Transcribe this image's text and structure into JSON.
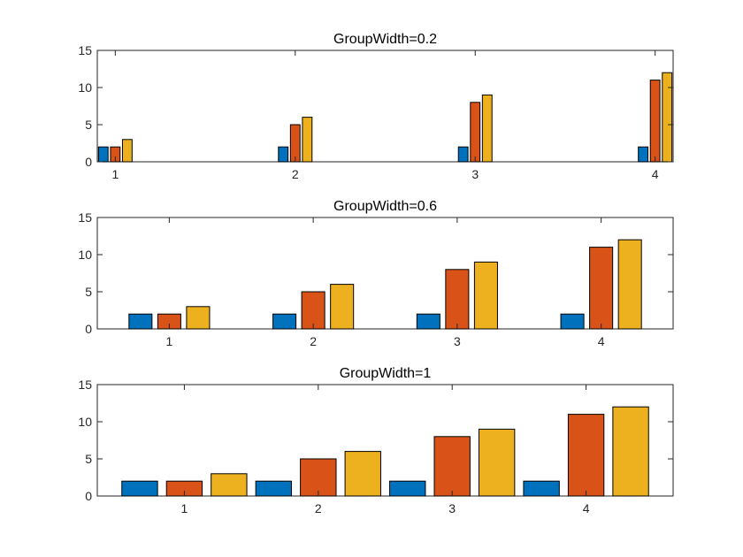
{
  "figure": {
    "background": "#ffffff"
  },
  "chart_data": [
    {
      "type": "bar",
      "title": "GroupWidth=0.2",
      "group_width": 0.2,
      "categories": [
        "1",
        "2",
        "3",
        "4"
      ],
      "series": [
        {
          "name": "Series 1",
          "color": "#0072BD",
          "values": [
            2,
            2,
            2,
            2
          ]
        },
        {
          "name": "Series 2",
          "color": "#D95319",
          "values": [
            2,
            5,
            8,
            11
          ]
        },
        {
          "name": "Series 3",
          "color": "#EDB120",
          "values": [
            3,
            6,
            9,
            12
          ]
        }
      ],
      "xlim": [
        0.9,
        4.1
      ],
      "ylim": [
        0,
        15
      ],
      "yticks": [
        0,
        5,
        10,
        15
      ],
      "xlabel": "",
      "ylabel": "",
      "grid": false,
      "legend": null
    },
    {
      "type": "bar",
      "title": "GroupWidth=0.6",
      "group_width": 0.6,
      "categories": [
        "1",
        "2",
        "3",
        "4"
      ],
      "series": [
        {
          "name": "Series 1",
          "color": "#0072BD",
          "values": [
            2,
            2,
            2,
            2
          ]
        },
        {
          "name": "Series 2",
          "color": "#D95319",
          "values": [
            2,
            5,
            8,
            11
          ]
        },
        {
          "name": "Series 3",
          "color": "#EDB120",
          "values": [
            3,
            6,
            9,
            12
          ]
        }
      ],
      "xlim": [
        0.5,
        4.5
      ],
      "ylim": [
        0,
        15
      ],
      "yticks": [
        0,
        5,
        10,
        15
      ],
      "xlabel": "",
      "ylabel": "",
      "grid": false,
      "legend": null
    },
    {
      "type": "bar",
      "title": "GroupWidth=1",
      "group_width": 1,
      "categories": [
        "1",
        "2",
        "3",
        "4"
      ],
      "series": [
        {
          "name": "Series 1",
          "color": "#0072BD",
          "values": [
            2,
            2,
            2,
            2
          ]
        },
        {
          "name": "Series 2",
          "color": "#D95319",
          "values": [
            2,
            5,
            8,
            11
          ]
        },
        {
          "name": "Series 3",
          "color": "#EDB120",
          "values": [
            3,
            6,
            9,
            12
          ]
        }
      ],
      "xlim": [
        0.35,
        4.65
      ],
      "ylim": [
        0,
        15
      ],
      "yticks": [
        0,
        5,
        10,
        15
      ],
      "xlabel": "",
      "ylabel": "",
      "grid": false,
      "legend": null
    }
  ]
}
